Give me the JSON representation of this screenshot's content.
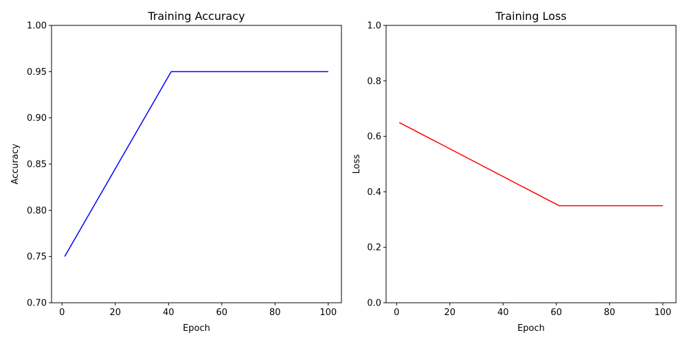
{
  "chart_data": [
    {
      "type": "line",
      "title": "Training Accuracy",
      "xlabel": "Epoch",
      "ylabel": "Accuracy",
      "xlim": [
        -3.95,
        104.95
      ],
      "ylim": [
        0.7,
        1.0
      ],
      "xticks": [
        0,
        20,
        40,
        60,
        80,
        100
      ],
      "xtick_labels": [
        "0",
        "20",
        "40",
        "60",
        "80",
        "100"
      ],
      "yticks": [
        0.7,
        0.75,
        0.8,
        0.85,
        0.9,
        0.95,
        1.0
      ],
      "ytick_labels": [
        "0.70",
        "0.75",
        "0.80",
        "0.85",
        "0.90",
        "0.95",
        "1.00"
      ],
      "grid": false,
      "series": [
        {
          "color": "#0000ff",
          "x": [
            1,
            41,
            100
          ],
          "y": [
            0.75,
            0.95,
            0.95
          ]
        }
      ]
    },
    {
      "type": "line",
      "title": "Training Loss",
      "xlabel": "Epoch",
      "ylabel": "Loss",
      "xlim": [
        -3.95,
        104.95
      ],
      "ylim": [
        0.0,
        1.0
      ],
      "xticks": [
        0,
        20,
        40,
        60,
        80,
        100
      ],
      "xtick_labels": [
        "0",
        "20",
        "40",
        "60",
        "80",
        "100"
      ],
      "yticks": [
        0.0,
        0.2,
        0.4,
        0.6,
        0.8,
        1.0
      ],
      "ytick_labels": [
        "0.0",
        "0.2",
        "0.4",
        "0.6",
        "0.8",
        "1.0"
      ],
      "grid": false,
      "series": [
        {
          "color": "#ff0000",
          "x": [
            1,
            61,
            100
          ],
          "y": [
            0.65,
            0.35,
            0.35
          ]
        }
      ]
    }
  ]
}
